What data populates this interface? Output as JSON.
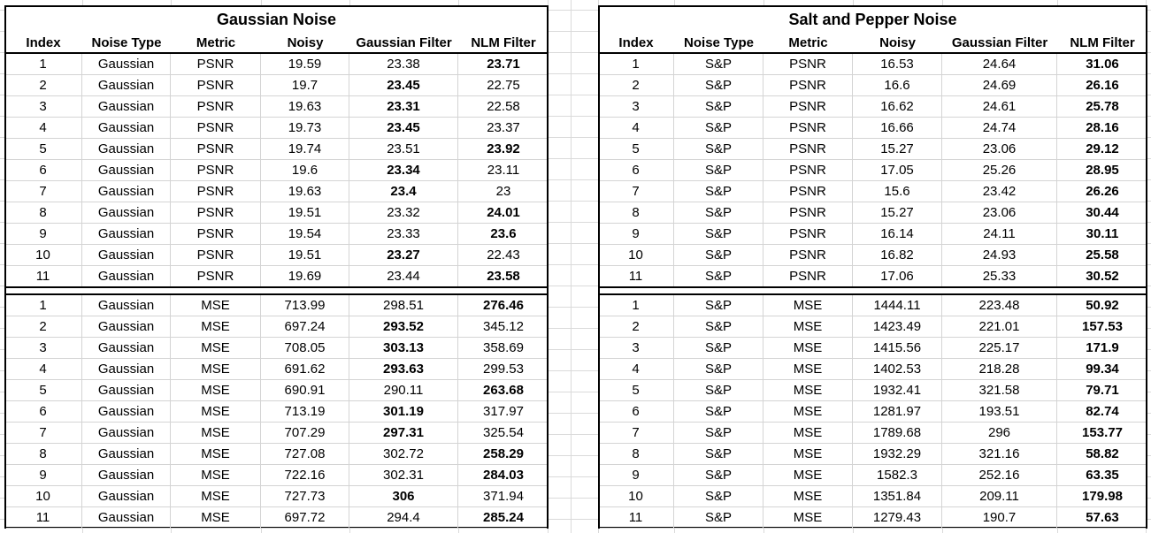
{
  "columns": [
    "Index",
    "Noise Type",
    "Metric",
    "Noisy",
    "Gaussian Filter",
    "NLM Filter"
  ],
  "tables": [
    {
      "title": "Gaussian Noise",
      "psnr_rows": [
        [
          "1",
          "Gaussian",
          "PSNR",
          "19.59",
          "23.38",
          "23.71"
        ],
        [
          "2",
          "Gaussian",
          "PSNR",
          "19.7",
          "23.45",
          "22.75"
        ],
        [
          "3",
          "Gaussian",
          "PSNR",
          "19.63",
          "23.31",
          "22.58"
        ],
        [
          "4",
          "Gaussian",
          "PSNR",
          "19.73",
          "23.45",
          "23.37"
        ],
        [
          "5",
          "Gaussian",
          "PSNR",
          "19.74",
          "23.51",
          "23.92"
        ],
        [
          "6",
          "Gaussian",
          "PSNR",
          "19.6",
          "23.34",
          "23.11"
        ],
        [
          "7",
          "Gaussian",
          "PSNR",
          "19.63",
          "23.4",
          "23"
        ],
        [
          "8",
          "Gaussian",
          "PSNR",
          "19.51",
          "23.32",
          "24.01"
        ],
        [
          "9",
          "Gaussian",
          "PSNR",
          "19.54",
          "23.33",
          "23.6"
        ],
        [
          "10",
          "Gaussian",
          "PSNR",
          "19.51",
          "23.27",
          "22.43"
        ],
        [
          "11",
          "Gaussian",
          "PSNR",
          "19.69",
          "23.44",
          "23.58"
        ]
      ],
      "psnr_bold_col": [
        5,
        4,
        4,
        4,
        5,
        4,
        4,
        5,
        5,
        4,
        5
      ],
      "mse_rows": [
        [
          "1",
          "Gaussian",
          "MSE",
          "713.99",
          "298.51",
          "276.46"
        ],
        [
          "2",
          "Gaussian",
          "MSE",
          "697.24",
          "293.52",
          "345.12"
        ],
        [
          "3",
          "Gaussian",
          "MSE",
          "708.05",
          "303.13",
          "358.69"
        ],
        [
          "4",
          "Gaussian",
          "MSE",
          "691.62",
          "293.63",
          "299.53"
        ],
        [
          "5",
          "Gaussian",
          "MSE",
          "690.91",
          "290.11",
          "263.68"
        ],
        [
          "6",
          "Gaussian",
          "MSE",
          "713.19",
          "301.19",
          "317.97"
        ],
        [
          "7",
          "Gaussian",
          "MSE",
          "707.29",
          "297.31",
          "325.54"
        ],
        [
          "8",
          "Gaussian",
          "MSE",
          "727.08",
          "302.72",
          "258.29"
        ],
        [
          "9",
          "Gaussian",
          "MSE",
          "722.16",
          "302.31",
          "284.03"
        ],
        [
          "10",
          "Gaussian",
          "MSE",
          "727.73",
          "306",
          "371.94"
        ],
        [
          "11",
          "Gaussian",
          "MSE",
          "697.72",
          "294.4",
          "285.24"
        ]
      ],
      "mse_bold_col": [
        5,
        4,
        4,
        4,
        5,
        4,
        4,
        5,
        5,
        4,
        5
      ]
    },
    {
      "title": "Salt and Pepper Noise",
      "psnr_rows": [
        [
          "1",
          "S&P",
          "PSNR",
          "16.53",
          "24.64",
          "31.06"
        ],
        [
          "2",
          "S&P",
          "PSNR",
          "16.6",
          "24.69",
          "26.16"
        ],
        [
          "3",
          "S&P",
          "PSNR",
          "16.62",
          "24.61",
          "25.78"
        ],
        [
          "4",
          "S&P",
          "PSNR",
          "16.66",
          "24.74",
          "28.16"
        ],
        [
          "5",
          "S&P",
          "PSNR",
          "15.27",
          "23.06",
          "29.12"
        ],
        [
          "6",
          "S&P",
          "PSNR",
          "17.05",
          "25.26",
          "28.95"
        ],
        [
          "7",
          "S&P",
          "PSNR",
          "15.6",
          "23.42",
          "26.26"
        ],
        [
          "8",
          "S&P",
          "PSNR",
          "15.27",
          "23.06",
          "30.44"
        ],
        [
          "9",
          "S&P",
          "PSNR",
          "16.14",
          "24.11",
          "30.11"
        ],
        [
          "10",
          "S&P",
          "PSNR",
          "16.82",
          "24.93",
          "25.58"
        ],
        [
          "11",
          "S&P",
          "PSNR",
          "17.06",
          "25.33",
          "30.52"
        ]
      ],
      "psnr_bold_col": [
        5,
        5,
        5,
        5,
        5,
        5,
        5,
        5,
        5,
        5,
        5
      ],
      "mse_rows": [
        [
          "1",
          "S&P",
          "MSE",
          "1444.11",
          "223.48",
          "50.92"
        ],
        [
          "2",
          "S&P",
          "MSE",
          "1423.49",
          "221.01",
          "157.53"
        ],
        [
          "3",
          "S&P",
          "MSE",
          "1415.56",
          "225.17",
          "171.9"
        ],
        [
          "4",
          "S&P",
          "MSE",
          "1402.53",
          "218.28",
          "99.34"
        ],
        [
          "5",
          "S&P",
          "MSE",
          "1932.41",
          "321.58",
          "79.71"
        ],
        [
          "6",
          "S&P",
          "MSE",
          "1281.97",
          "193.51",
          "82.74"
        ],
        [
          "7",
          "S&P",
          "MSE",
          "1789.68",
          "296",
          "153.77"
        ],
        [
          "8",
          "S&P",
          "MSE",
          "1932.29",
          "321.16",
          "58.82"
        ],
        [
          "9",
          "S&P",
          "MSE",
          "1582.3",
          "252.16",
          "63.35"
        ],
        [
          "10",
          "S&P",
          "MSE",
          "1351.84",
          "209.11",
          "179.98"
        ],
        [
          "11",
          "S&P",
          "MSE",
          "1279.43",
          "190.7",
          "57.63"
        ]
      ],
      "mse_bold_col": [
        5,
        5,
        5,
        5,
        5,
        5,
        5,
        5,
        5,
        5,
        5
      ]
    }
  ]
}
